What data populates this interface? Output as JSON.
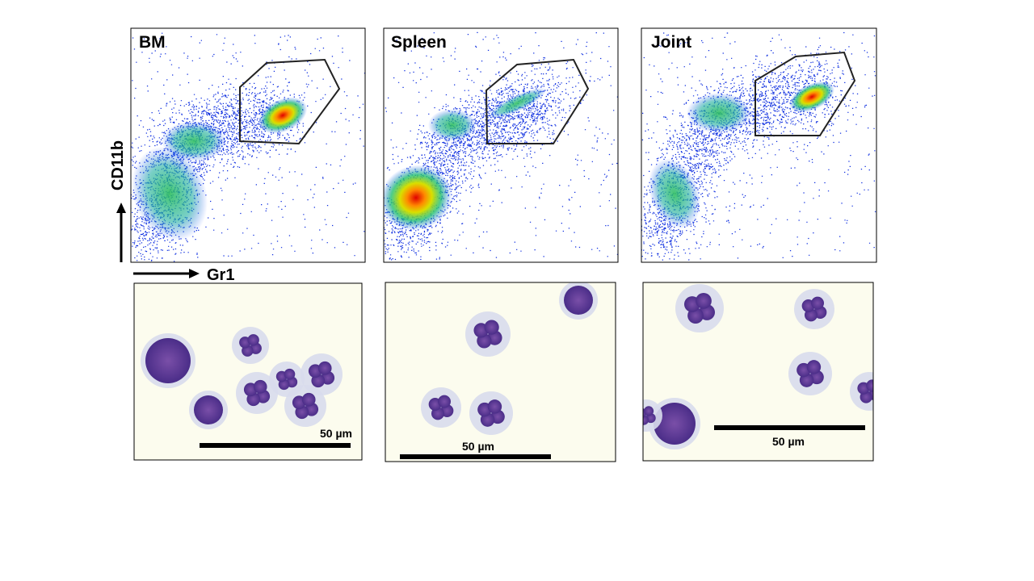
{
  "y_axis_label": "CD11b",
  "x_axis_label": "Gr1",
  "panels": [
    {
      "label": "BM",
      "scale_bar": "50 µm"
    },
    {
      "label": "Spleen",
      "scale_bar": "50 µm"
    },
    {
      "label": "Joint",
      "scale_bar": "50 µm"
    }
  ]
}
